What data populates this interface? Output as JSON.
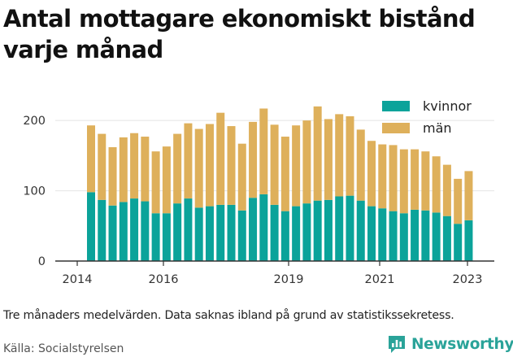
{
  "chart_data": {
    "type": "bar",
    "stacked": true,
    "title": "Antal mottagare ekonomiskt bistånd varje månad",
    "x_tick_labels": [
      "2014",
      "2016",
      "2019",
      "2021",
      "2023"
    ],
    "y_ticks": [
      0,
      100,
      200
    ],
    "ylim": [
      0,
      250
    ],
    "grid": true,
    "legend_position": "top-right",
    "series": [
      {
        "name": "kvinnor",
        "color": "#0ba39a",
        "values": [
          98,
          87,
          79,
          84,
          89,
          85,
          68,
          68,
          82,
          89,
          76,
          78,
          80,
          80,
          72,
          90,
          95,
          80,
          71,
          78,
          82,
          86,
          87,
          92,
          93,
          86,
          78,
          75,
          71,
          68,
          73,
          72,
          69,
          64,
          53,
          58
        ]
      },
      {
        "name": "män",
        "color": "#deb05b",
        "values": [
          95,
          94,
          83,
          92,
          93,
          92,
          88,
          95,
          99,
          107,
          112,
          117,
          131,
          112,
          95,
          108,
          122,
          114,
          106,
          115,
          118,
          134,
          115,
          117,
          113,
          101,
          93,
          91,
          94,
          91,
          86,
          84,
          80,
          73,
          64,
          70
        ]
      }
    ]
  },
  "colors": {
    "accent": "#2aa399",
    "grid": "#e4e4e4"
  },
  "footer": {
    "note": "Tre månaders medelvärden. Data saknas ibland på grund av statistikssekretess.",
    "source": "Källa: Socialstyrelsen",
    "brand": "Newsworthy",
    "brand_icon": "newsworthy-logo-icon"
  }
}
